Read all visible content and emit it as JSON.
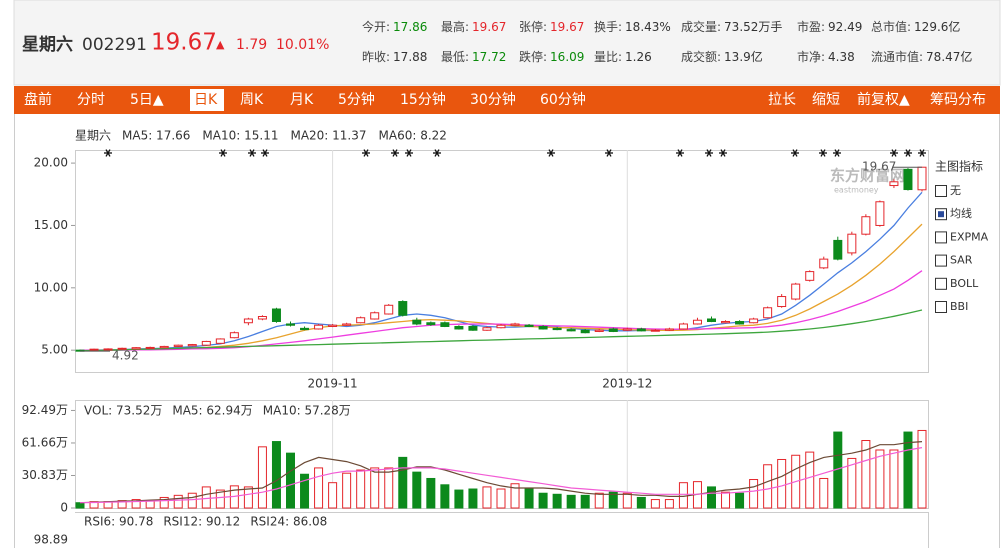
{
  "header": {
    "name": "星期六",
    "code": "002291",
    "price": "19.67",
    "arrow": "▲",
    "change": "1.79",
    "percent": "10.01%",
    "stats": [
      [
        {
          "label": "今开:",
          "value": "17.86",
          "color": "#0a8a0a"
        },
        {
          "label": "最高:",
          "value": "19.67",
          "color": "#e4262b"
        },
        {
          "label": "张停:",
          "value": "19.67",
          "color": "#e4262b"
        },
        {
          "label": "换手:",
          "value": "18.43%",
          "color": "#333"
        },
        {
          "label": "成交量:",
          "value": "73.52万手",
          "color": "#333"
        },
        {
          "label": "市盈:",
          "value": "92.49",
          "color": "#333"
        },
        {
          "label": "总市值:",
          "value": "129.6亿",
          "color": "#333"
        }
      ],
      [
        {
          "label": "昨收:",
          "value": "17.88",
          "color": "#333"
        },
        {
          "label": "最低:",
          "value": "17.72",
          "color": "#0a8a0a"
        },
        {
          "label": "跌停:",
          "value": "16.09",
          "color": "#0a8a0a"
        },
        {
          "label": "量比:",
          "value": "1.26",
          "color": "#333"
        },
        {
          "label": "成交额:",
          "value": "13.9亿",
          "color": "#333"
        },
        {
          "label": "市净:",
          "value": "4.38",
          "color": "#333"
        },
        {
          "label": "流通市值:",
          "value": "78.47亿",
          "color": "#333"
        }
      ]
    ]
  },
  "toolbar": {
    "left": [
      "盘前",
      "分时",
      "5日▲",
      "日K",
      "周K",
      "月K",
      "5分钟",
      "15分钟",
      "30分钟",
      "60分钟"
    ],
    "right": [
      "拉长",
      "缩短",
      "前复权▲",
      "筹码分布"
    ],
    "active": "日K"
  },
  "indicator_panel": {
    "title": "主图指标",
    "options": [
      {
        "label": "无",
        "checked": false
      },
      {
        "label": "均线",
        "checked": true
      },
      {
        "label": "EXPMA",
        "checked": false
      },
      {
        "label": "SAR",
        "checked": false
      },
      {
        "label": "BOLL",
        "checked": false
      },
      {
        "label": "BBI",
        "checked": false
      }
    ]
  },
  "chart_data": [
    {
      "type": "candlestick",
      "title": "星期六",
      "watermark": "东方财富网",
      "watermark_sub": "eastmoney",
      "up_color": "#e4262b",
      "down_color": "#0c8a1c",
      "categories": [
        null,
        null,
        null,
        null,
        null,
        null,
        null,
        null,
        null,
        null,
        null,
        null,
        null,
        null,
        null,
        null,
        null,
        null,
        "2019-11",
        null,
        null,
        null,
        null,
        null,
        null,
        null,
        null,
        null,
        null,
        null,
        null,
        null,
        null,
        null,
        null,
        null,
        null,
        null,
        null,
        "2019-12",
        null,
        null,
        null,
        null,
        null,
        null,
        null,
        null,
        null,
        null,
        null,
        null,
        null,
        null,
        null,
        null,
        null,
        null,
        null,
        null,
        null
      ],
      "open": [
        5.0,
        5.0,
        5.05,
        5.1,
        5.1,
        5.15,
        5.2,
        5.3,
        5.35,
        5.4,
        5.55,
        6.0,
        7.2,
        7.5,
        8.3,
        7.1,
        6.75,
        6.7,
        6.9,
        7.0,
        7.2,
        7.5,
        7.9,
        8.9,
        7.4,
        7.2,
        7.2,
        6.9,
        6.9,
        6.6,
        6.8,
        7.0,
        7.0,
        6.9,
        6.75,
        6.65,
        6.6,
        6.5,
        6.7,
        6.6,
        6.7,
        6.55,
        6.6,
        6.7,
        7.1,
        7.5,
        7.2,
        7.3,
        7.2,
        7.6,
        8.5,
        9.1,
        10.6,
        11.6,
        13.8,
        12.8,
        14.3,
        15.0,
        18.2,
        19.5,
        17.86
      ],
      "high": [
        5.05,
        5.12,
        5.15,
        5.2,
        5.25,
        5.28,
        5.35,
        5.45,
        5.5,
        5.75,
        5.95,
        6.5,
        7.6,
        7.8,
        8.4,
        7.3,
        6.9,
        7.1,
        7.1,
        7.2,
        7.7,
        8.1,
        8.7,
        9.0,
        7.6,
        7.3,
        7.3,
        7.0,
        7.0,
        6.9,
        7.1,
        7.2,
        7.1,
        7.0,
        6.85,
        6.75,
        6.7,
        6.7,
        6.8,
        6.8,
        6.8,
        6.7,
        6.8,
        7.2,
        7.6,
        7.7,
        7.4,
        7.4,
        7.6,
        8.5,
        9.5,
        10.4,
        11.4,
        12.5,
        14.1,
        14.5,
        15.9,
        17.0,
        18.7,
        19.6,
        19.67
      ],
      "low": [
        4.92,
        4.95,
        5.0,
        5.05,
        5.05,
        5.1,
        5.15,
        5.25,
        5.3,
        5.35,
        5.5,
        5.95,
        7.0,
        7.4,
        7.2,
        6.9,
        6.6,
        6.65,
        6.85,
        6.95,
        7.15,
        7.45,
        7.85,
        7.7,
        7.0,
        6.95,
        6.85,
        6.65,
        6.55,
        6.55,
        6.75,
        6.95,
        6.85,
        6.65,
        6.6,
        6.5,
        6.35,
        6.45,
        6.45,
        6.55,
        6.5,
        6.5,
        6.55,
        6.65,
        7.05,
        7.25,
        7.15,
        7.05,
        7.15,
        7.55,
        8.4,
        9.0,
        10.5,
        11.5,
        12.2,
        12.6,
        14.2,
        14.9,
        18.0,
        17.8,
        17.72
      ],
      "close": [
        4.95,
        5.08,
        5.1,
        5.15,
        5.2,
        5.22,
        5.3,
        5.4,
        5.45,
        5.7,
        5.9,
        6.4,
        7.5,
        7.7,
        7.3,
        7.0,
        6.65,
        7.0,
        7.0,
        7.1,
        7.6,
        8.0,
        8.6,
        7.8,
        7.1,
        7.05,
        6.9,
        6.7,
        6.6,
        6.8,
        7.0,
        7.1,
        6.9,
        6.7,
        6.65,
        6.55,
        6.4,
        6.6,
        6.5,
        6.7,
        6.55,
        6.6,
        6.7,
        7.1,
        7.4,
        7.3,
        7.3,
        7.1,
        7.5,
        8.4,
        9.3,
        10.3,
        11.3,
        12.3,
        12.3,
        14.3,
        15.7,
        16.9,
        18.5,
        17.88,
        19.67
      ],
      "series": [
        {
          "name": "MA5: 17.66",
          "color": "#4a7fe0",
          "values": [
            5.0,
            5.0,
            5.02,
            5.05,
            5.1,
            5.13,
            5.17,
            5.22,
            5.28,
            5.38,
            5.5,
            5.75,
            6.1,
            6.5,
            6.9,
            7.1,
            7.2,
            7.1,
            7.0,
            6.9,
            7.0,
            7.2,
            7.5,
            7.8,
            7.9,
            7.8,
            7.6,
            7.3,
            7.0,
            6.9,
            6.85,
            6.85,
            6.9,
            6.9,
            6.85,
            6.75,
            6.65,
            6.6,
            6.55,
            6.55,
            6.58,
            6.58,
            6.6,
            6.65,
            6.8,
            7.0,
            7.15,
            7.25,
            7.3,
            7.5,
            7.9,
            8.6,
            9.4,
            10.3,
            11.2,
            12.0,
            12.9,
            13.9,
            15.0,
            16.4,
            17.66
          ]
        },
        {
          "name": "MA10: 15.11",
          "color": "#e8a32e",
          "values": [
            5.0,
            5.0,
            5.0,
            5.02,
            5.05,
            5.08,
            5.1,
            5.13,
            5.17,
            5.22,
            5.3,
            5.4,
            5.55,
            5.75,
            6.0,
            6.3,
            6.6,
            6.8,
            6.95,
            7.0,
            7.05,
            7.1,
            7.2,
            7.3,
            7.4,
            7.45,
            7.4,
            7.35,
            7.25,
            7.15,
            7.05,
            6.95,
            6.9,
            6.85,
            6.8,
            6.8,
            6.75,
            6.72,
            6.7,
            6.65,
            6.62,
            6.6,
            6.58,
            6.6,
            6.65,
            6.75,
            6.85,
            6.95,
            7.0,
            7.15,
            7.4,
            7.8,
            8.3,
            8.9,
            9.5,
            10.2,
            11.0,
            11.9,
            12.9,
            14.0,
            15.11
          ]
        },
        {
          "name": "MA20: 11.37",
          "color": "#ee3ee0",
          "values": [
            5.0,
            5.0,
            5.0,
            5.0,
            5.02,
            5.03,
            5.05,
            5.07,
            5.1,
            5.12,
            5.15,
            5.2,
            5.28,
            5.38,
            5.5,
            5.62,
            5.75,
            5.9,
            6.05,
            6.2,
            6.35,
            6.5,
            6.65,
            6.8,
            6.9,
            7.0,
            7.05,
            7.08,
            7.1,
            7.1,
            7.08,
            7.05,
            7.0,
            6.98,
            6.95,
            6.92,
            6.88,
            6.84,
            6.8,
            6.76,
            6.72,
            6.7,
            6.68,
            6.68,
            6.7,
            6.72,
            6.75,
            6.78,
            6.8,
            6.88,
            7.0,
            7.2,
            7.45,
            7.75,
            8.1,
            8.5,
            8.9,
            9.4,
            9.9,
            10.6,
            11.37
          ]
        },
        {
          "name": "MA60: 8.22",
          "color": "#3ea63e",
          "values": [
            4.95,
            4.98,
            5.0,
            5.03,
            5.06,
            5.09,
            5.12,
            5.15,
            5.18,
            5.21,
            5.24,
            5.27,
            5.3,
            5.33,
            5.36,
            5.39,
            5.42,
            5.45,
            5.48,
            5.51,
            5.54,
            5.57,
            5.6,
            5.63,
            5.66,
            5.69,
            5.72,
            5.75,
            5.78,
            5.81,
            5.84,
            5.87,
            5.9,
            5.93,
            5.96,
            5.99,
            6.02,
            6.05,
            6.08,
            6.11,
            6.14,
            6.17,
            6.2,
            6.23,
            6.26,
            6.29,
            6.32,
            6.36,
            6.4,
            6.45,
            6.52,
            6.6,
            6.7,
            6.82,
            6.96,
            7.12,
            7.3,
            7.5,
            7.72,
            7.96,
            8.22
          ]
        }
      ],
      "annotations": [
        {
          "text": "19.67",
          "value": 19.67,
          "index": 60
        },
        {
          "text": "4.92",
          "value": 4.92,
          "index": 0
        }
      ],
      "ylim": [
        3.25,
        21.05
      ],
      "yticks": [
        {
          "value": 5,
          "label": "5.00"
        },
        {
          "value": 10,
          "label": "10.00"
        },
        {
          "value": 15,
          "label": "15.00"
        },
        {
          "value": 20,
          "label": "20.00"
        }
      ]
    },
    {
      "type": "bar",
      "series": [
        {
          "name": "VOL: 73.52万",
          "color": "#e4262b",
          "values": [
            5,
            6,
            6,
            7,
            8,
            7,
            10,
            12,
            14,
            20,
            17,
            21,
            20,
            58,
            63,
            52,
            32,
            38,
            24,
            33,
            36,
            38,
            38,
            48,
            34,
            28,
            22,
            17,
            18,
            20,
            18,
            23,
            18,
            14,
            13,
            12,
            12,
            14,
            15,
            14,
            10,
            8,
            8,
            24,
            25,
            20,
            15,
            14,
            27,
            41,
            46,
            50,
            53,
            28,
            72,
            47,
            64,
            55,
            55,
            72,
            73.52
          ]
        },
        {
          "name": "MA5: 62.94万",
          "color": "#6b4a35",
          "type": "line",
          "values": [
            5,
            5.5,
            6,
            6.5,
            6.8,
            7.5,
            8,
            9,
            10,
            13,
            15,
            17,
            18,
            19,
            26,
            35,
            43,
            48,
            46,
            44,
            40,
            34,
            34,
            36,
            39,
            39,
            36,
            32,
            28,
            24,
            21,
            19,
            19,
            19,
            18,
            16,
            14,
            13,
            13,
            13,
            12,
            12,
            11,
            11,
            13,
            15,
            17,
            18,
            20,
            25,
            30,
            37,
            43,
            48,
            50,
            52,
            55,
            60,
            60,
            62,
            62.94
          ]
        },
        {
          "name": "MA10: 57.28万",
          "color": "#f25cd5",
          "type": "line",
          "values": [
            5,
            5.2,
            5.5,
            5.8,
            6.2,
            6.5,
            7,
            7.5,
            8,
            9,
            10,
            11,
            13,
            15,
            18,
            22,
            26,
            30,
            33,
            35,
            35,
            36,
            37,
            38,
            38,
            38,
            37,
            35,
            33,
            31,
            29,
            27,
            25,
            23,
            21,
            19,
            18,
            17,
            16,
            15,
            14,
            13,
            13,
            13,
            13,
            14,
            14,
            15,
            16,
            18,
            21,
            25,
            29,
            33,
            37,
            41,
            45,
            49,
            52,
            55,
            57.28
          ]
        }
      ],
      "ylim": [
        0,
        102.4
      ],
      "yticks": [
        0,
        {
          "value": 30.83,
          "label": "30.83万"
        },
        {
          "value": 61.66,
          "label": "61.66万"
        },
        {
          "value": 92.49,
          "label": "92.49万"
        }
      ]
    }
  ],
  "rsi": {
    "legend": [
      {
        "name": "RSI6: 90.78",
        "color": "#555"
      },
      {
        "name": "RSI12: 90.12",
        "color": "#e8a32e"
      },
      {
        "name": "RSI24: 86.08",
        "color": "#ee3ee0"
      }
    ],
    "top_tick": 98.89
  }
}
